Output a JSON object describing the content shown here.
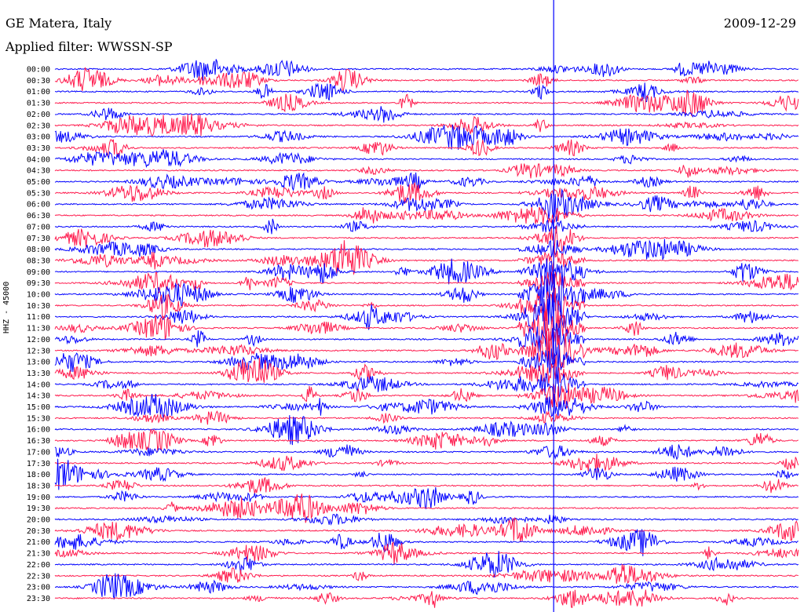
{
  "header": {
    "station": "GE Matera, Italy",
    "date": "2009-12-29",
    "filter": "Applied filter: WWSSN-SP"
  },
  "chart_data": {
    "type": "line",
    "title": "GE Matera, Italy",
    "subtitle": "Applied filter: WWSSN-SP",
    "ylabel": "HHZ - 45000",
    "xlabel": "",
    "row_labels": [
      "00:00",
      "00:30",
      "01:00",
      "01:30",
      "02:00",
      "02:30",
      "03:00",
      "03:30",
      "04:00",
      "04:30",
      "05:00",
      "05:30",
      "06:00",
      "06:30",
      "07:00",
      "07:30",
      "08:00",
      "08:30",
      "09:00",
      "09:30",
      "10:00",
      "10:30",
      "11:00",
      "11:30",
      "12:00",
      "12:30",
      "13:00",
      "13:30",
      "14:00",
      "14:30",
      "15:00",
      "15:30",
      "16:00",
      "16:30",
      "17:00",
      "17:30",
      "18:00",
      "18:30",
      "19:00",
      "19:30",
      "20:00",
      "20:30",
      "21:00",
      "21:30",
      "22:00",
      "22:30",
      "23:00",
      "23:30"
    ],
    "row_colors": [
      "#0000ff",
      "#ff1a4d"
    ],
    "event": {
      "column_fraction": 0.67,
      "start_row": "00:00",
      "peak_rows": [
        "10:30",
        "11:00",
        "11:30",
        "12:00",
        "12:30"
      ]
    },
    "legend": "none",
    "grid": false
  }
}
